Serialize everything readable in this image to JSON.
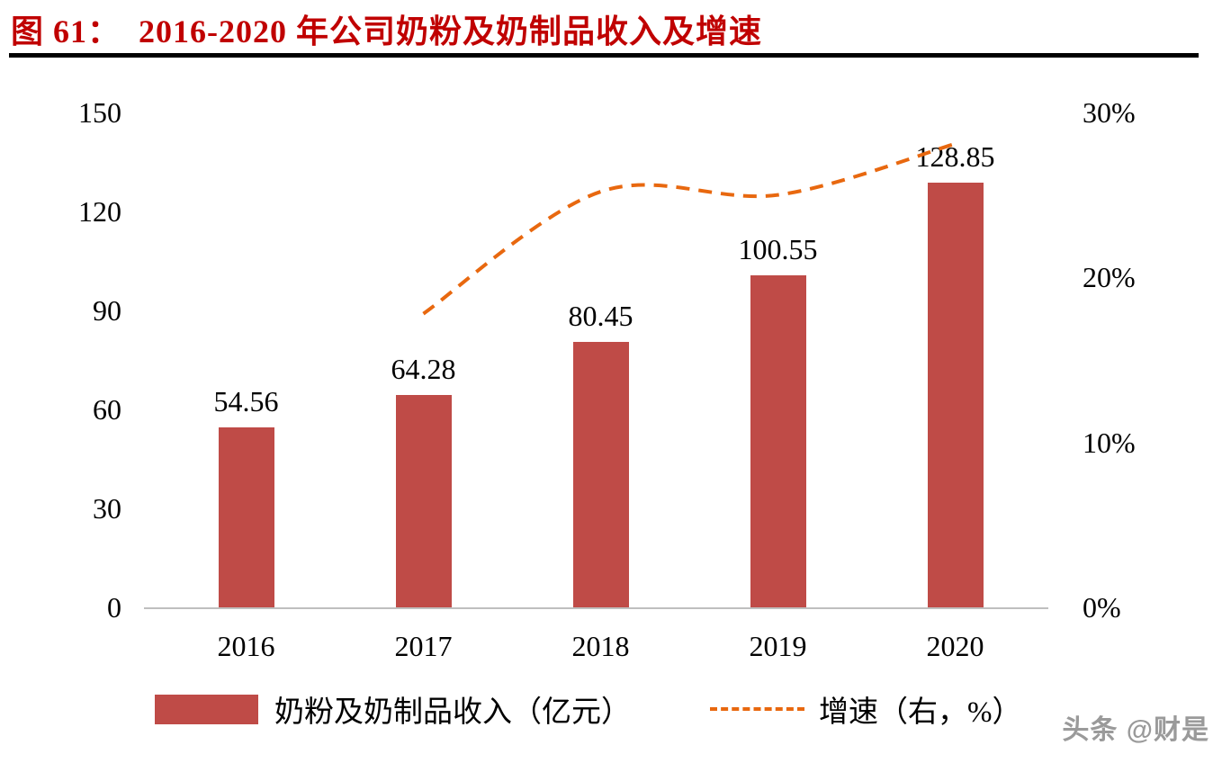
{
  "header": {
    "figure_label": "图 61：",
    "title_full": "图 61：  2016-2020 年公司奶粉及奶制品收入及增速"
  },
  "chart_data": {
    "type": "combo",
    "title": "2016-2020 年公司奶粉及奶制品收入及增速",
    "categories": [
      "2016",
      "2017",
      "2018",
      "2019",
      "2020"
    ],
    "series": [
      {
        "name": "奶粉及奶制品收入（亿元）",
        "type": "bar",
        "axis": "left",
        "color": "#bf4b47",
        "values": [
          54.56,
          64.28,
          80.45,
          100.55,
          128.85
        ]
      },
      {
        "name": "增速（右，%）",
        "type": "line",
        "style": "dashed",
        "axis": "right",
        "color": "#e8680f",
        "values": [
          null,
          17.8,
          25.2,
          25.0,
          28.1
        ]
      }
    ],
    "left_axis": {
      "ticks": [
        0,
        30,
        60,
        90,
        120,
        150
      ],
      "min": 0,
      "max": 150
    },
    "right_axis": {
      "ticks": [
        "0%",
        "10%",
        "20%",
        "30%"
      ],
      "tick_values": [
        0,
        10,
        20,
        30
      ],
      "min": 0,
      "max": 30
    },
    "grid": false,
    "legend_position": "bottom",
    "bar_label_decimals": 2
  },
  "watermark": {
    "text": "头条 @财是"
  },
  "colors": {
    "title": "#c00000",
    "rule": "#000000",
    "axis_line": "#bfbfbf"
  }
}
